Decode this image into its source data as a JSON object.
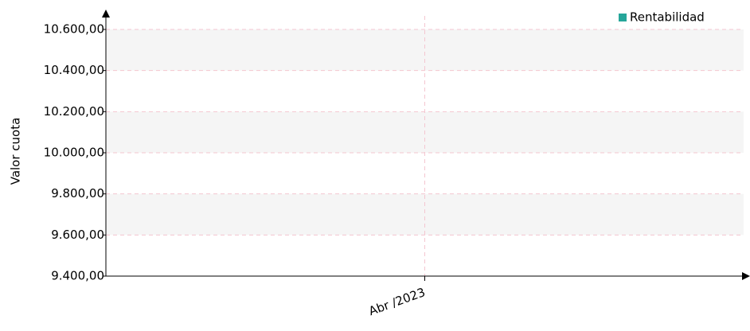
{
  "chart_data": {
    "type": "line",
    "y_label": "Valor cuota",
    "categories": [
      "Abr /2023"
    ],
    "series": [
      {
        "name": "Rentabilidad",
        "color": "#26a69a",
        "values": [
          null
        ]
      }
    ],
    "ylim": [
      9400,
      10600
    ],
    "yticks": [
      {
        "value": 9400,
        "label": "9.400,00"
      },
      {
        "value": 9600,
        "label": "9.600,00"
      },
      {
        "value": 9800,
        "label": "9.800,00"
      },
      {
        "value": 10000,
        "label": "10.000,00"
      },
      {
        "value": 10200,
        "label": "10.200,00"
      },
      {
        "value": 10400,
        "label": "10.400,00"
      },
      {
        "value": 10600,
        "label": "10.600,00"
      }
    ],
    "grid": true,
    "legend": "top-right"
  }
}
